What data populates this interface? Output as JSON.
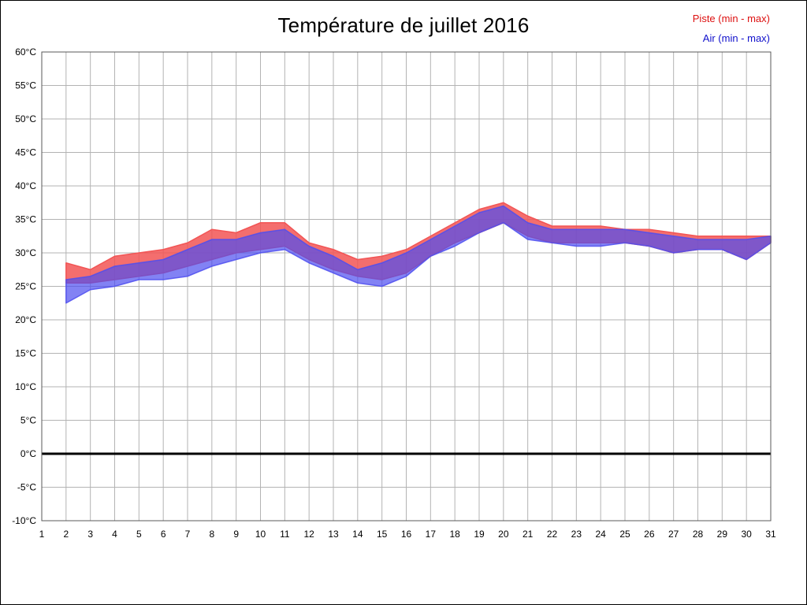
{
  "title": "Température de juillet 2016",
  "legend": [
    {
      "label": "Piste (min - max)",
      "color": "#dd1111"
    },
    {
      "label": "Air (min - max)",
      "color": "#1111cc"
    }
  ],
  "chart_data": {
    "type": "area",
    "title": "Température de juillet 2016",
    "grid": true,
    "zero_line": true,
    "x_axis": {
      "range": [
        1,
        31
      ],
      "tick_step": 1
    },
    "y_axis": {
      "ylim": [
        -10,
        60
      ],
      "tick_step": 5,
      "label_suffix": "°C"
    },
    "x": [
      2,
      3,
      4,
      5,
      6,
      7,
      8,
      9,
      10,
      11,
      12,
      13,
      14,
      15,
      16,
      17,
      18,
      19,
      20,
      21,
      22,
      23,
      24,
      25,
      26,
      27,
      28,
      29,
      30,
      31
    ],
    "series": [
      {
        "name": "Piste (min - max)",
        "color": "#f25555",
        "opacity": 0.85,
        "min": [
          25.5,
          25.5,
          26,
          26.5,
          27,
          28,
          29,
          30,
          30.5,
          31,
          29,
          27.5,
          26.5,
          26,
          27,
          29.5,
          31.5,
          33,
          34.5,
          32.5,
          31.5,
          31.5,
          31.5,
          31.5,
          31,
          30,
          30.5,
          30.5,
          29,
          31.5
        ],
        "max": [
          28.5,
          27.5,
          29.5,
          30,
          30.5,
          31.5,
          33.5,
          33,
          34.5,
          34.5,
          31.5,
          30.5,
          29,
          29.5,
          30.5,
          32.5,
          34.5,
          36.5,
          37.5,
          35.5,
          34,
          34,
          34,
          33.5,
          33.5,
          33,
          32.5,
          32.5,
          32.5,
          32.5
        ]
      },
      {
        "name": "Air (min - max)",
        "color": "#4d4df0",
        "opacity": 0.7,
        "min": [
          22.5,
          24.5,
          25,
          26,
          26,
          26.5,
          28,
          29,
          30,
          30.5,
          28.5,
          27,
          25.5,
          25,
          26.5,
          29.5,
          31,
          33,
          34.5,
          32,
          31.5,
          31,
          31,
          31.5,
          31,
          30,
          30.5,
          30.5,
          29,
          31.5
        ],
        "max": [
          26,
          26.5,
          28,
          28.5,
          29,
          30.5,
          32,
          32,
          33,
          33.5,
          31,
          29.5,
          27.5,
          28.5,
          30,
          32,
          34,
          36,
          37,
          34.5,
          33.5,
          33.5,
          33.5,
          33.5,
          33,
          32.5,
          32,
          32,
          32,
          32.5
        ]
      }
    ]
  }
}
